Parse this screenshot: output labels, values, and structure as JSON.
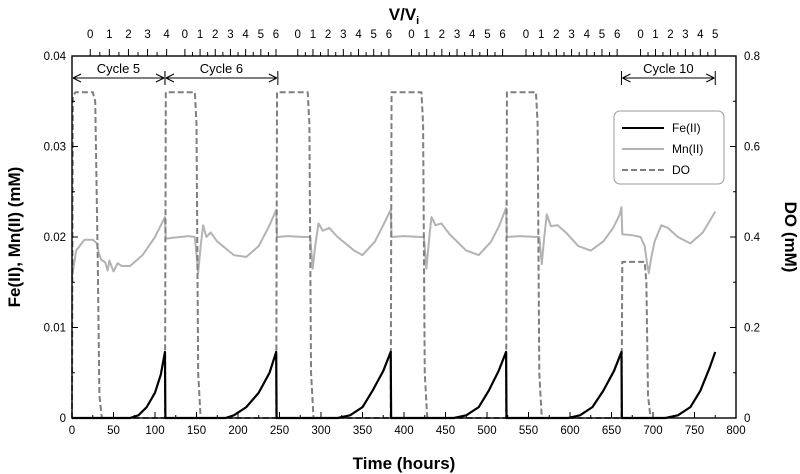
{
  "chart_data": {
    "type": "line",
    "xlabel": "Time (hours)",
    "ylabel_left": "Fe(II), Mn(II) (mM)",
    "ylabel_right": "DO (mM)",
    "top_axis_label": "V/V",
    "top_axis_label_sub": "i",
    "xlim": [
      0,
      800
    ],
    "ylim_left": [
      0,
      0.04
    ],
    "ylim_right": [
      0,
      0.8
    ],
    "x_ticks": [
      "0",
      "50",
      "100",
      "150",
      "200",
      "250",
      "300",
      "350",
      "400",
      "450",
      "500",
      "550",
      "600",
      "650",
      "700",
      "750",
      "800"
    ],
    "y_left_ticks": [
      "0",
      "0.01",
      "0.02",
      "0.03",
      "0.04"
    ],
    "y_right_ticks": [
      "0",
      "0.2",
      "0.4",
      "0.6",
      "0.8"
    ],
    "top_axis_groups": [
      {
        "start_hour": 22,
        "hours_per_unit": 23,
        "labels": [
          "0",
          "1",
          "2",
          "3",
          "4"
        ]
      },
      {
        "start_hour": 136,
        "hours_per_unit": 18.3,
        "labels": [
          "0",
          "1",
          "2",
          "3",
          "4",
          "5",
          "6"
        ]
      },
      {
        "start_hour": 272,
        "hours_per_unit": 18.3,
        "labels": [
          "0",
          "1",
          "2",
          "3",
          "4",
          "5",
          "6"
        ]
      },
      {
        "start_hour": 409,
        "hours_per_unit": 18.3,
        "labels": [
          "0",
          "1",
          "2",
          "3",
          "4",
          "5",
          "6"
        ]
      },
      {
        "start_hour": 547,
        "hours_per_unit": 18.3,
        "labels": [
          "0",
          "1",
          "2",
          "3",
          "4",
          "5",
          "6"
        ]
      },
      {
        "start_hour": 685,
        "hours_per_unit": 18,
        "labels": [
          "0",
          "1",
          "2",
          "3",
          "4",
          "5"
        ]
      }
    ],
    "cycle_annotations": [
      {
        "label": "Cycle 5",
        "x_start": 0,
        "x_end": 112
      },
      {
        "label": "Cycle 6",
        "x_start": 112,
        "x_end": 248
      },
      {
        "label": "Cycle 10",
        "x_start": 662,
        "x_end": 775
      }
    ],
    "legend_position": "top-right",
    "series": [
      {
        "name": "Fe(II)",
        "axis": "left",
        "color": "#000000",
        "style": "solid",
        "points": [
          [
            0,
            0
          ],
          [
            70,
            0
          ],
          [
            80,
            0.0003
          ],
          [
            90,
            0.0012
          ],
          [
            100,
            0.0028
          ],
          [
            107,
            0.0048
          ],
          [
            112,
            0.0073
          ],
          [
            112.5,
            0
          ],
          [
            185,
            0
          ],
          [
            195,
            0.0003
          ],
          [
            210,
            0.0012
          ],
          [
            225,
            0.0028
          ],
          [
            238,
            0.005
          ],
          [
            246,
            0.0073
          ],
          [
            246.5,
            0
          ],
          [
            320,
            0
          ],
          [
            335,
            0.0003
          ],
          [
            350,
            0.0012
          ],
          [
            362,
            0.003
          ],
          [
            375,
            0.0052
          ],
          [
            384,
            0.0073
          ],
          [
            384.5,
            0
          ],
          [
            460,
            0
          ],
          [
            475,
            0.0003
          ],
          [
            490,
            0.0012
          ],
          [
            502,
            0.003
          ],
          [
            514,
            0.0052
          ],
          [
            523,
            0.0073
          ],
          [
            523.5,
            0
          ],
          [
            598,
            0
          ],
          [
            612,
            0.0003
          ],
          [
            627,
            0.0012
          ],
          [
            640,
            0.003
          ],
          [
            653,
            0.0052
          ],
          [
            662,
            0.0073
          ],
          [
            662.5,
            0
          ],
          [
            715,
            0
          ],
          [
            730,
            0.0003
          ],
          [
            745,
            0.0012
          ],
          [
            757,
            0.003
          ],
          [
            768,
            0.0055
          ],
          [
            775,
            0.0073
          ]
        ]
      },
      {
        "name": "Mn(II)",
        "axis": "left",
        "color": "#b3b3b3",
        "style": "solid",
        "points": [
          [
            0,
            0.0155
          ],
          [
            5,
            0.0185
          ],
          [
            15,
            0.0197
          ],
          [
            25,
            0.0197
          ],
          [
            30,
            0.0193
          ],
          [
            32,
            0.0183
          ],
          [
            35,
            0.0175
          ],
          [
            40,
            0.0172
          ],
          [
            43,
            0.0163
          ],
          [
            45,
            0.0174
          ],
          [
            50,
            0.0162
          ],
          [
            55,
            0.0171
          ],
          [
            60,
            0.0168
          ],
          [
            70,
            0.0168
          ],
          [
            85,
            0.018
          ],
          [
            100,
            0.02
          ],
          [
            112,
            0.0222
          ],
          [
            113,
            0.0198
          ],
          [
            120,
            0.0199
          ],
          [
            140,
            0.0201
          ],
          [
            148,
            0.02
          ],
          [
            152,
            0.016
          ],
          [
            155,
            0.019
          ],
          [
            158,
            0.0213
          ],
          [
            162,
            0.02
          ],
          [
            167,
            0.0205
          ],
          [
            175,
            0.0195
          ],
          [
            195,
            0.018
          ],
          [
            210,
            0.0178
          ],
          [
            225,
            0.019
          ],
          [
            238,
            0.0213
          ],
          [
            246,
            0.023
          ],
          [
            247,
            0.02
          ],
          [
            260,
            0.0201
          ],
          [
            280,
            0.02
          ],
          [
            287,
            0.02
          ],
          [
            290,
            0.0165
          ],
          [
            293,
            0.019
          ],
          [
            297,
            0.0215
          ],
          [
            302,
            0.0207
          ],
          [
            310,
            0.021
          ],
          [
            320,
            0.02
          ],
          [
            340,
            0.0185
          ],
          [
            350,
            0.018
          ],
          [
            365,
            0.0195
          ],
          [
            376,
            0.0215
          ],
          [
            384,
            0.023
          ],
          [
            385,
            0.02
          ],
          [
            400,
            0.0201
          ],
          [
            420,
            0.02
          ],
          [
            424,
            0.02
          ],
          [
            427,
            0.0165
          ],
          [
            430,
            0.0195
          ],
          [
            433,
            0.0222
          ],
          [
            438,
            0.0213
          ],
          [
            445,
            0.0215
          ],
          [
            455,
            0.0203
          ],
          [
            475,
            0.0185
          ],
          [
            490,
            0.018
          ],
          [
            505,
            0.0195
          ],
          [
            515,
            0.0213
          ],
          [
            523,
            0.0232
          ],
          [
            524,
            0.02
          ],
          [
            540,
            0.0201
          ],
          [
            560,
            0.02
          ],
          [
            563,
            0.02
          ],
          [
            566,
            0.017
          ],
          [
            569,
            0.02
          ],
          [
            572,
            0.0225
          ],
          [
            577,
            0.0212
          ],
          [
            585,
            0.0213
          ],
          [
            595,
            0.0205
          ],
          [
            610,
            0.019
          ],
          [
            625,
            0.0185
          ],
          [
            640,
            0.0195
          ],
          [
            652,
            0.021
          ],
          [
            660,
            0.0225
          ],
          [
            662,
            0.0233
          ],
          [
            663,
            0.0203
          ],
          [
            675,
            0.0202
          ],
          [
            685,
            0.02
          ],
          [
            690,
            0.019
          ],
          [
            693,
            0.017
          ],
          [
            695,
            0.016
          ],
          [
            698,
            0.0178
          ],
          [
            702,
            0.0195
          ],
          [
            710,
            0.0213
          ],
          [
            718,
            0.021
          ],
          [
            730,
            0.02
          ],
          [
            745,
            0.0193
          ],
          [
            760,
            0.0205
          ],
          [
            775,
            0.0228
          ]
        ]
      },
      {
        "name": "DO",
        "axis": "right",
        "color": "#7f7f7f",
        "style": "dashed",
        "points": [
          [
            0,
            0
          ],
          [
            1,
            0.71
          ],
          [
            4,
            0.72
          ],
          [
            25,
            0.72
          ],
          [
            28,
            0.7
          ],
          [
            31,
            0.35
          ],
          [
            33,
            0.05
          ],
          [
            36,
            0
          ],
          [
            112,
            0
          ],
          [
            113,
            0.72
          ],
          [
            148,
            0.72
          ],
          [
            150,
            0.65
          ],
          [
            152,
            0.1
          ],
          [
            155,
            0
          ],
          [
            246,
            0
          ],
          [
            247,
            0.72
          ],
          [
            284,
            0.72
          ],
          [
            286,
            0.65
          ],
          [
            288,
            0.1
          ],
          [
            291,
            0
          ],
          [
            384,
            0
          ],
          [
            385,
            0.72
          ],
          [
            421,
            0.72
          ],
          [
            423,
            0.65
          ],
          [
            425,
            0.1
          ],
          [
            428,
            0
          ],
          [
            523,
            0
          ],
          [
            524,
            0.72
          ],
          [
            559,
            0.72
          ],
          [
            561,
            0.65
          ],
          [
            563,
            0.1
          ],
          [
            566,
            0
          ],
          [
            662,
            0
          ],
          [
            663,
            0.345
          ],
          [
            690,
            0.345
          ],
          [
            692,
            0.3
          ],
          [
            694,
            0.05
          ],
          [
            697,
            0
          ]
        ]
      }
    ]
  }
}
